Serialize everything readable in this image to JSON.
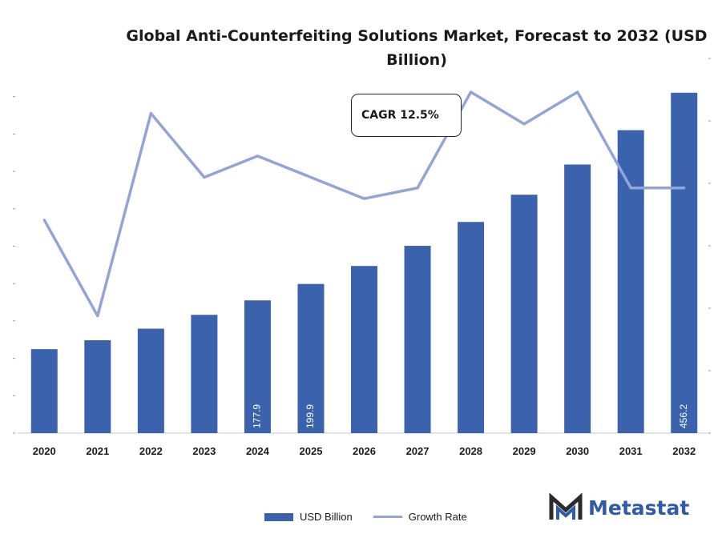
{
  "chart_data": {
    "type": "bar",
    "title": "Global Anti-Counterfeiting Solutions Market, Forecast to 2032 (USD Billion)",
    "categories": [
      "2020",
      "2021",
      "2022",
      "2023",
      "2024",
      "2025",
      "2026",
      "2027",
      "2028",
      "2029",
      "2030",
      "2031",
      "2032"
    ],
    "series": [
      {
        "name": "USD Billion",
        "type": "bar",
        "color": "#3b62ad",
        "values": [
          112.5,
          124.5,
          140.0,
          158.5,
          177.9,
          199.9,
          224.0,
          251.0,
          283.0,
          319.5,
          360.0,
          406.0,
          456.2
        ],
        "data_labels": [
          "",
          "",
          "",
          "",
          "177.9",
          "199.9",
          "",
          "",
          "",
          "",
          "",
          "",
          "456.2"
        ]
      },
      {
        "name": "Growth Rate",
        "type": "line",
        "color": "#93a5d8",
        "values": [
          11.5,
          10.6,
          12.5,
          11.9,
          12.1,
          11.9,
          11.7,
          11.8,
          12.7,
          12.4,
          12.7,
          11.8,
          11.8
        ]
      }
    ],
    "ylim": [
      0,
      500
    ],
    "y2lim": [
      9.5,
      13.0
    ],
    "grid": false,
    "legend": "bottom",
    "annotation": "CAGR 12.5%"
  },
  "legend": {
    "bar_label": "USD Billion",
    "line_label": "Growth Rate"
  },
  "logo": {
    "text": "Metastat",
    "color": "#2f5ba8"
  }
}
